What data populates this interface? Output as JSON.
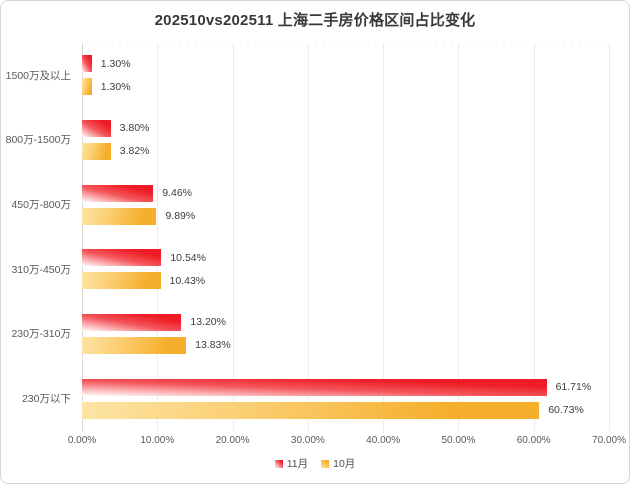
{
  "title": "202510vs202511 上海二手房价格区间占比变化",
  "colors": {
    "red_series": "#ee1c25",
    "orange_series": "#f5af2c",
    "value_label_text": "#3d3d3d",
    "axis_text": "#595959",
    "gridline": "#ececec"
  },
  "chart_data": {
    "type": "bar",
    "orientation": "horizontal",
    "title": "202510vs202511 上海二手房价格区间占比变化",
    "categories": [
      "1500万及以上",
      "800万-1500万",
      "450万-800万",
      "310万-450万",
      "230万-310万",
      "230万以下"
    ],
    "series": [
      {
        "name": "11月",
        "color": "#ee1c25",
        "values": [
          1.3,
          3.8,
          9.46,
          10.54,
          13.2,
          61.71
        ],
        "labels": [
          "1.30%",
          "3.80%",
          "9.46%",
          "10.54%",
          "13.20%",
          "61.71%"
        ]
      },
      {
        "name": "10月",
        "color": "#f5af2c",
        "values": [
          1.3,
          3.82,
          9.89,
          10.43,
          13.83,
          60.73
        ],
        "labels": [
          "1.30%",
          "3.82%",
          "9.89%",
          "10.43%",
          "13.83%",
          "60.73%"
        ]
      }
    ],
    "xlabel": "",
    "ylabel": "",
    "xlim": [
      0,
      70
    ],
    "x_ticks": [
      "0.00%",
      "10.00%",
      "20.00%",
      "30.00%",
      "40.00%",
      "50.00%",
      "60.00%",
      "70.00%"
    ],
    "grid": true,
    "legend_position": "bottom"
  }
}
